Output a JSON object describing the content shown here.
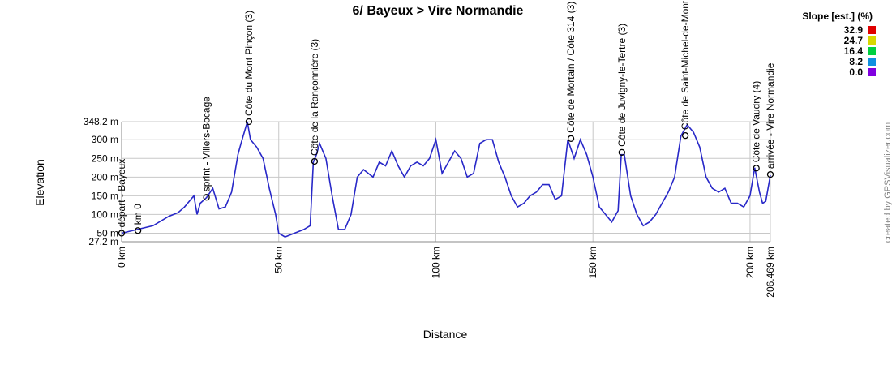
{
  "chart_data": {
    "type": "line",
    "title": "6/ Bayeux > Vire Normandie",
    "x_label": "Distance",
    "y_label": "Elevation",
    "credit": "created by GPSVisualizer.com",
    "legend_title": "Slope [est.] (%)",
    "legend": [
      {
        "name": "32.9",
        "color": "#e00000"
      },
      {
        "name": "24.7",
        "color": "#d8d800"
      },
      {
        "name": "16.4",
        "color": "#00d040"
      },
      {
        "name": "8.2",
        "color": "#1090e0"
      },
      {
        "name": "0.0",
        "color": "#8000e0"
      }
    ],
    "xlim": [
      0,
      206.469
    ],
    "ylim": [
      27.2,
      348.2
    ],
    "xticks": [
      {
        "value": 0,
        "label": "0 km"
      },
      {
        "value": 50,
        "label": "50 km"
      },
      {
        "value": 100,
        "label": "100 km"
      },
      {
        "value": 150,
        "label": "150 km"
      },
      {
        "value": 200,
        "label": "200 km"
      },
      {
        "value": 206.469,
        "label": "206.469 km"
      }
    ],
    "yticks": [
      {
        "value": 27.2,
        "label": "27.2 m"
      },
      {
        "value": 50,
        "label": "50 m"
      },
      {
        "value": 100,
        "label": "100 m"
      },
      {
        "value": 150,
        "label": "150 m"
      },
      {
        "value": 200,
        "label": "200 m"
      },
      {
        "value": 250,
        "label": "250 m"
      },
      {
        "value": 300,
        "label": "300 m"
      },
      {
        "value": 348.2,
        "label": "348.2 m"
      }
    ],
    "grid": true,
    "series": [
      {
        "name": "Elevation",
        "color": "#2828c8",
        "x": [
          0,
          5,
          10,
          15,
          18,
          20,
          22,
          23,
          24,
          25,
          27,
          29,
          31,
          33,
          35,
          37,
          38,
          40,
          41,
          43,
          45,
          47,
          49,
          50,
          52,
          55,
          58,
          60,
          61,
          62,
          63,
          65,
          67,
          69,
          71,
          73,
          75,
          77,
          80,
          82,
          84,
          86,
          88,
          90,
          92,
          94,
          96,
          98,
          100,
          102,
          104,
          106,
          108,
          110,
          112,
          114,
          116,
          118,
          120,
          122,
          124,
          126,
          128,
          130,
          132,
          134,
          136,
          138,
          140,
          142,
          144,
          146,
          148,
          150,
          152,
          154,
          156,
          158,
          159,
          160,
          162,
          164,
          166,
          168,
          170,
          172,
          174,
          176,
          178,
          180,
          182,
          184,
          186,
          188,
          190,
          192,
          194,
          196,
          198,
          200,
          201.5,
          203,
          204,
          205,
          206.469
        ],
        "values": [
          50,
          60,
          70,
          95,
          105,
          120,
          140,
          150,
          100,
          130,
          145,
          170,
          115,
          120,
          160,
          260,
          290,
          348,
          300,
          280,
          250,
          170,
          100,
          50,
          40,
          50,
          60,
          70,
          240,
          260,
          290,
          250,
          150,
          60,
          60,
          100,
          200,
          220,
          200,
          240,
          230,
          270,
          230,
          200,
          230,
          240,
          230,
          250,
          300,
          210,
          240,
          270,
          250,
          200,
          210,
          290,
          300,
          300,
          240,
          200,
          150,
          120,
          130,
          150,
          160,
          180,
          180,
          140,
          150,
          300,
          250,
          300,
          260,
          200,
          120,
          100,
          80,
          110,
          260,
          260,
          150,
          100,
          70,
          80,
          100,
          130,
          160,
          200,
          310,
          340,
          320,
          280,
          200,
          170,
          160,
          170,
          130,
          130,
          120,
          150,
          225,
          160,
          130,
          135,
          205
        ]
      }
    ],
    "waypoints": [
      {
        "label": "départ - Bayeux",
        "x": 0,
        "y": 50
      },
      {
        "label": "km 0",
        "x": 5.2,
        "y": 57
      },
      {
        "label": "sprint - Villers-Bocage",
        "x": 27,
        "y": 146
      },
      {
        "label": "Côte du Mont Pinçon (3)",
        "x": 40.5,
        "y": 348.2
      },
      {
        "label": "Côte de la Rançonnière (3)",
        "x": 61.4,
        "y": 242
      },
      {
        "label": "Côte de Mortain / Côte 314 (3)",
        "x": 143,
        "y": 303
      },
      {
        "label": "Côte de Juvigny-le-Tertre (3)",
        "x": 159.2,
        "y": 266
      },
      {
        "label": "Côte de Saint-Michel-de-Mont",
        "x": 179.4,
        "y": 311
      },
      {
        "label": "Côte de Vaudry (4)",
        "x": 202,
        "y": 224
      },
      {
        "label": "arrivée - Vire Normandie",
        "x": 206.469,
        "y": 207
      }
    ]
  }
}
